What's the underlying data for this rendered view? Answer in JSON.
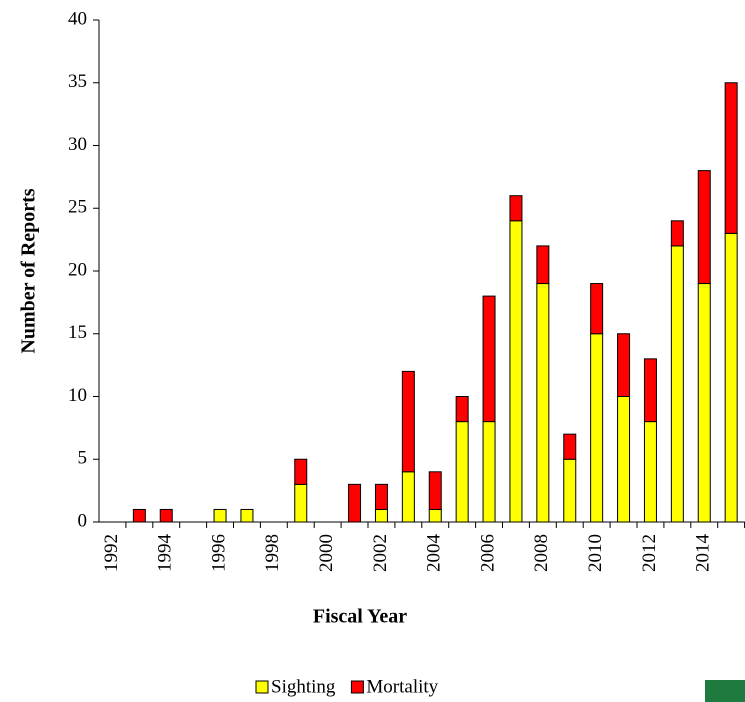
{
  "chart_data": {
    "type": "stacked_bar",
    "x_label": "Fiscal Year",
    "y_label": "Number of Reports",
    "categories": [
      "1992",
      null,
      "1994",
      null,
      "1996",
      null,
      "1998",
      null,
      "2000",
      null,
      "2002",
      null,
      "2004",
      null,
      "2006",
      null,
      "2008",
      null,
      "2010",
      null,
      "2012",
      null,
      "2014",
      null
    ],
    "series": [
      {
        "name": "Sighting",
        "color": "#ffff00",
        "values": [
          0,
          0,
          0,
          0,
          1,
          1,
          0,
          3,
          0,
          0,
          1,
          4,
          1,
          8,
          8,
          24,
          19,
          5,
          15,
          10,
          8,
          22,
          19,
          23
        ]
      },
      {
        "name": "Mortality",
        "color": "#ff0000",
        "values": [
          0,
          1,
          1,
          0,
          0,
          0,
          0,
          2,
          0,
          3,
          2,
          8,
          3,
          2,
          10,
          2,
          3,
          2,
          4,
          5,
          5,
          2,
          9,
          12
        ]
      }
    ],
    "ylim": [
      0,
      40
    ],
    "yticks": [
      0,
      5,
      10,
      15,
      20,
      25,
      30,
      35,
      40
    ],
    "legend": "bottom"
  }
}
